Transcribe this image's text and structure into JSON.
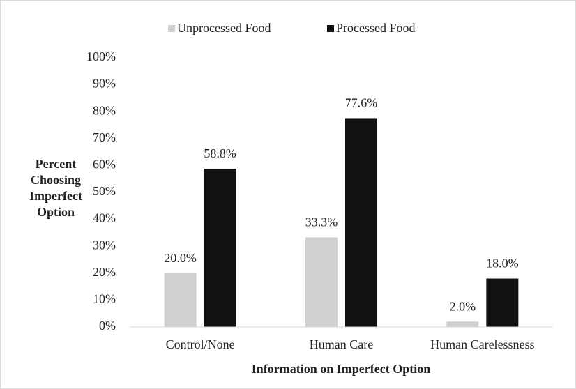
{
  "chart_data": {
    "type": "bar",
    "categories": [
      "Control/None",
      "Human Care",
      "Human Carelessness"
    ],
    "series": [
      {
        "name": "Unprocessed Food",
        "color": "#d0d0d0",
        "values": [
          20.0,
          33.3,
          2.0
        ],
        "value_labels": [
          "20.0%",
          "33.3%",
          "2.0%"
        ]
      },
      {
        "name": "Processed Food",
        "color": "#111111",
        "values": [
          58.8,
          77.6,
          18.0
        ],
        "value_labels": [
          "58.8%",
          "77.6%",
          "18.0%"
        ]
      }
    ],
    "xlabel": "Information on Imperfect Option",
    "ylabel": [
      "Percent",
      "Choosing",
      "Imperfect",
      "Option"
    ],
    "ylim": [
      0,
      100
    ],
    "yticks": [
      {
        "value": 0,
        "label": "0%"
      },
      {
        "value": 10,
        "label": "10%"
      },
      {
        "value": 20,
        "label": "20%"
      },
      {
        "value": 30,
        "label": "30%"
      },
      {
        "value": 40,
        "label": "40%"
      },
      {
        "value": 50,
        "label": "50%"
      },
      {
        "value": 60,
        "label": "60%"
      },
      {
        "value": 70,
        "label": "70%"
      },
      {
        "value": 80,
        "label": "80%"
      },
      {
        "value": 90,
        "label": "90%"
      },
      {
        "value": 100,
        "label": "100%"
      }
    ],
    "grid": false,
    "legend": "top"
  }
}
